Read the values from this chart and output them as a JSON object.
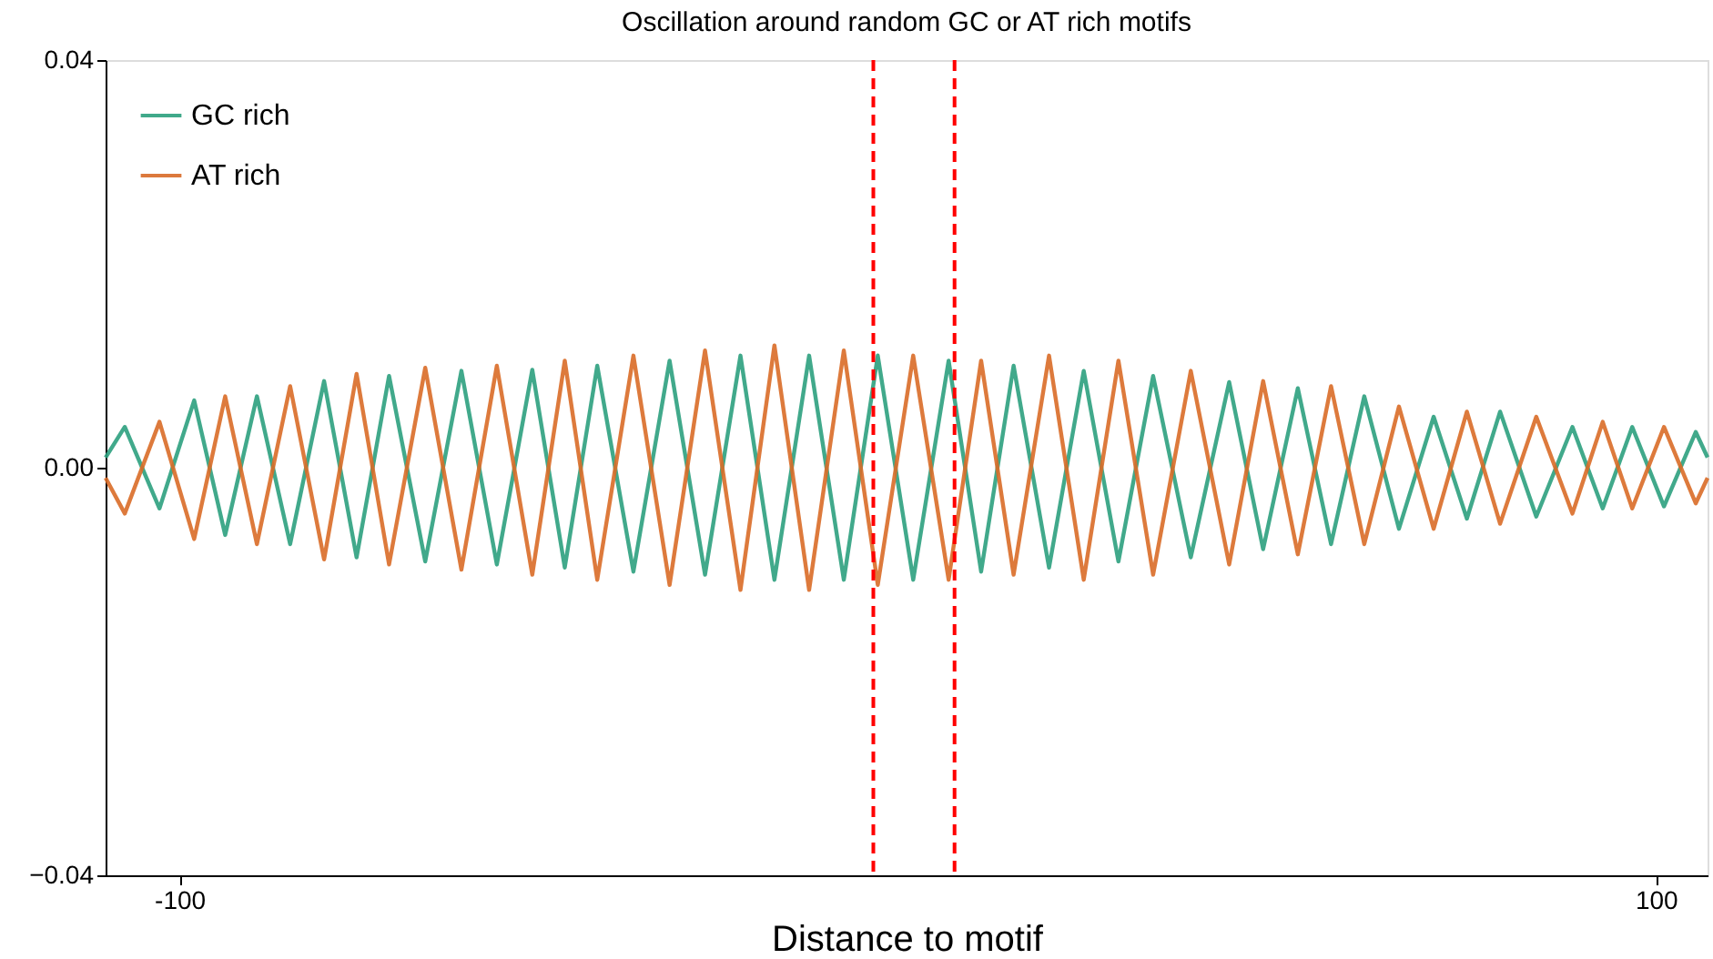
{
  "chart_data": {
    "type": "line",
    "title": "Oscillation around random GC or AT rich motifs",
    "xlabel": "Distance to motif",
    "x": [
      -110,
      -107.4,
      -102.7,
      -98.0,
      -93.8,
      -89.5,
      -85.0,
      -80.4,
      -76.0,
      -71.6,
      -66.7,
      -61.8,
      -57.0,
      -52.2,
      -47.8,
      -43.4,
      -38.5,
      -33.6,
      -28.8,
      -24.0,
      -19.4,
      -14.7,
      -10.0,
      -5.4,
      -0.6,
      4.2,
      8.6,
      13.0,
      17.8,
      22.5,
      27.2,
      31.9,
      37.0,
      42.2,
      46.8,
      51.5,
      56.0,
      60.5,
      65.2,
      69.9,
      74.4,
      78.9,
      83.8,
      88.7,
      92.8,
      96.8,
      101.1,
      105.4,
      107
    ],
    "series": [
      {
        "name": "GC rich",
        "color": "#2ca07e",
        "values": [
          0.001,
          0.004,
          -0.004,
          0.0066,
          -0.0066,
          0.007,
          -0.0075,
          0.0085,
          -0.0088,
          0.009,
          -0.0092,
          0.0095,
          -0.0095,
          0.0096,
          -0.0098,
          0.01,
          -0.0102,
          0.0105,
          -0.0105,
          0.011,
          -0.011,
          0.011,
          -0.011,
          0.011,
          -0.011,
          0.0105,
          -0.0102,
          0.01,
          -0.0098,
          0.0095,
          -0.0092,
          0.009,
          -0.0088,
          0.0084,
          -0.008,
          0.0078,
          -0.0075,
          0.007,
          -0.006,
          0.005,
          -0.005,
          0.0055,
          -0.0048,
          0.004,
          -0.004,
          0.004,
          -0.0038,
          0.0035,
          0.001
        ]
      },
      {
        "name": "AT rich",
        "color": "#d96b27",
        "values": [
          -0.001,
          -0.0045,
          0.0045,
          -0.007,
          0.007,
          -0.0075,
          0.008,
          -0.009,
          0.0092,
          -0.0095,
          0.0098,
          -0.01,
          0.01,
          -0.0105,
          0.0105,
          -0.011,
          0.011,
          -0.0115,
          0.0115,
          -0.012,
          0.012,
          -0.012,
          0.0115,
          -0.0115,
          0.011,
          -0.011,
          0.0105,
          -0.0105,
          0.011,
          -0.011,
          0.0105,
          -0.0105,
          0.0095,
          -0.0095,
          0.0085,
          -0.0085,
          0.008,
          -0.0075,
          0.006,
          -0.006,
          0.0055,
          -0.0055,
          0.005,
          -0.0045,
          0.0045,
          -0.004,
          0.004,
          -0.0035,
          -0.001
        ]
      }
    ],
    "xlim": [
      -110,
      107
    ],
    "xticks": [
      -100,
      100
    ],
    "ylim": [
      -0.04,
      0.04
    ],
    "yticks": [
      {
        "value": -0.04,
        "label": "−0.04"
      },
      {
        "value": 0,
        "label": "0.00"
      },
      {
        "value": 0.04,
        "label": "0.04"
      }
    ],
    "ref_lines": [
      {
        "axis": "x",
        "value": -6,
        "color": "#ff0000",
        "line_style": "dashed"
      },
      {
        "axis": "x",
        "value": 5,
        "color": "#ff0000",
        "line_style": "dashed"
      }
    ],
    "legend": "top left",
    "grid": false,
    "marker": "none",
    "line_style": "solid"
  }
}
